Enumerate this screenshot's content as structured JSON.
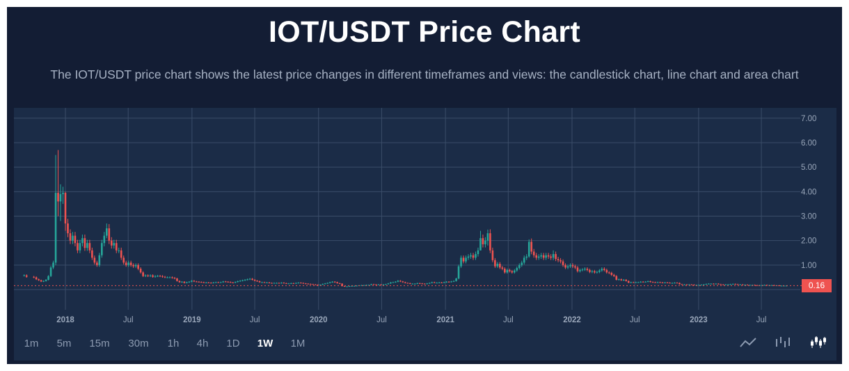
{
  "header": {
    "title": "IOT/USDT Price Chart",
    "subtitle": "The IOT/USDT price chart shows the latest price changes in different timeframes and views: the candlestick chart, line chart and area chart"
  },
  "timeframes": [
    {
      "label": "1m",
      "active": false
    },
    {
      "label": "5m",
      "active": false
    },
    {
      "label": "15m",
      "active": false
    },
    {
      "label": "30m",
      "active": false
    },
    {
      "label": "1h",
      "active": false
    },
    {
      "label": "4h",
      "active": false
    },
    {
      "label": "1D",
      "active": false
    },
    {
      "label": "1W",
      "active": true
    },
    {
      "label": "1M",
      "active": false
    }
  ],
  "views": [
    {
      "icon": "line-chart-icon",
      "active": false
    },
    {
      "icon": "bar-chart-icon",
      "active": false
    },
    {
      "icon": "candlestick-chart-icon",
      "active": true
    }
  ],
  "colors": {
    "up": "#26a69a",
    "down": "#ef5350",
    "grid": "#3b4d68",
    "axis_text": "#9aa7ba",
    "background": "#1b2c47"
  },
  "chart_data": {
    "type": "candlestick",
    "interval": "1W",
    "title": "",
    "xlabel": "",
    "ylabel": "",
    "ylim": [
      0,
      7
    ],
    "grid": true,
    "y_ticks": [
      "1.00",
      "2.00",
      "3.00",
      "4.00",
      "5.00",
      "6.00",
      "7.00"
    ],
    "x_ticks": [
      {
        "label": "2018",
        "date": "2018-01-01"
      },
      {
        "label": "Jul",
        "date": "2018-07-01"
      },
      {
        "label": "2019",
        "date": "2019-01-01"
      },
      {
        "label": "Jul",
        "date": "2019-07-01"
      },
      {
        "label": "2020",
        "date": "2020-01-01"
      },
      {
        "label": "Jul",
        "date": "2020-07-01"
      },
      {
        "label": "2021",
        "date": "2021-01-01"
      },
      {
        "label": "Jul",
        "date": "2021-07-01"
      },
      {
        "label": "2022",
        "date": "2022-01-01"
      },
      {
        "label": "Jul",
        "date": "2022-07-01"
      },
      {
        "label": "2023",
        "date": "2023-01-01"
      },
      {
        "label": "Jul",
        "date": "2023-07-01"
      }
    ],
    "last_price": "0.16",
    "last_price_value": 0.16,
    "weekly_closes_by_month": {
      "2017-09": [
        0.58,
        0.52
      ],
      "2017-10": [
        0.5,
        0.42,
        0.38,
        0.33,
        0.35
      ],
      "2017-11": [
        0.4,
        0.55,
        0.9,
        1.1
      ],
      "2017-12": [
        [
          3.95,
          5.5,
          1.0
        ],
        [
          3.6,
          5.7,
          3.0
        ],
        [
          3.9,
          4.3,
          2.8
        ],
        [
          3.95,
          4.2,
          3.5
        ]
      ],
      "2018-01": [
        [
          2.7,
          4.0,
          2.4
        ],
        2.3,
        2.0,
        2.2,
        1.9
      ],
      "2018-02": [
        1.6,
        1.9,
        2.1,
        1.7
      ],
      "2018-03": [
        1.9,
        1.6,
        1.3,
        1.1
      ],
      "2018-04": [
        1.0,
        1.4,
        1.9,
        2.2,
        [
          2.5,
          2.7,
          2.1
        ]
      ],
      "2018-05": [
        2.0,
        1.8,
        1.9,
        1.6
      ],
      "2018-06": [
        1.6,
        1.3,
        1.1,
        1.0
      ],
      "2018-07": [
        1.1,
        1.0,
        0.95,
        1.0,
        0.85
      ],
      "2018-08": [
        0.7,
        0.55,
        0.58,
        0.55
      ],
      "2018-09": [
        0.58,
        0.52,
        0.55,
        0.56
      ],
      "2018-10": [
        0.55,
        0.52,
        0.5,
        0.5,
        0.5
      ],
      "2018-11": [
        0.48,
        0.45,
        0.35,
        0.3
      ],
      "2018-12": [
        0.32,
        0.27,
        0.3,
        0.32,
        0.36
      ],
      "2019-01": [
        0.33,
        0.32,
        0.31,
        0.3
      ],
      "2019-02": [
        0.28,
        0.29,
        0.28,
        0.27
      ],
      "2019-03": [
        0.29,
        0.3,
        0.29,
        0.3
      ],
      "2019-04": [
        0.33,
        0.32,
        0.31,
        0.29,
        0.28
      ],
      "2019-05": [
        0.31,
        0.34,
        0.36,
        0.38
      ],
      "2019-06": [
        0.4,
        0.42,
        0.44,
        0.4
      ],
      "2019-07": [
        0.36,
        0.34,
        0.3,
        0.3,
        0.29
      ],
      "2019-08": [
        0.29,
        0.27,
        0.26,
        0.27
      ],
      "2019-09": [
        0.27,
        0.26,
        0.28,
        0.26,
        0.25
      ],
      "2019-10": [
        0.25,
        0.26,
        0.25,
        0.27
      ],
      "2019-11": [
        0.28,
        0.27,
        0.25,
        0.24
      ],
      "2019-12": [
        0.23,
        0.22,
        0.21,
        0.2,
        0.19
      ],
      "2020-01": [
        0.2,
        0.23,
        0.25,
        0.27
      ],
      "2020-02": [
        0.3,
        0.32,
        0.3,
        0.26
      ],
      "2020-03": [
        0.24,
        0.14,
        0.12,
        0.13,
        0.14
      ],
      "2020-04": [
        0.15,
        0.15,
        0.16,
        0.17
      ],
      "2020-05": [
        0.18,
        0.18,
        0.19,
        0.19
      ],
      "2020-06": [
        0.22,
        0.21,
        0.2,
        0.21,
        0.2
      ],
      "2020-07": [
        0.21,
        0.22,
        0.25,
        0.29
      ],
      "2020-08": [
        0.3,
        0.32,
        0.36,
        0.33,
        0.3
      ],
      "2020-09": [
        0.27,
        0.26,
        0.24,
        0.24
      ],
      "2020-10": [
        0.24,
        0.26,
        0.25,
        0.24
      ],
      "2020-11": [
        0.23,
        0.25,
        0.27,
        0.3,
        0.28
      ],
      "2020-12": [
        0.28,
        0.29,
        0.28,
        0.3
      ],
      "2021-01": [
        0.32,
        0.31,
        0.33,
        0.35
      ],
      "2021-02": [
        0.45,
        0.95,
        1.3,
        1.15
      ],
      "2021-03": [
        1.3,
        1.35,
        1.4,
        1.3,
        1.45
      ],
      "2021-04": [
        1.6,
        [
          2.1,
          2.4,
          1.6
        ],
        1.85,
        2.0
      ],
      "2021-05": [
        [
          2.3,
          2.45,
          1.8
        ],
        1.6,
        1.2,
        0.95,
        1.05
      ],
      "2021-06": [
        0.9,
        0.85,
        0.7,
        0.8
      ],
      "2021-07": [
        0.75,
        0.7,
        0.78,
        0.88
      ],
      "2021-08": [
        1.0,
        1.1,
        1.3,
        1.35,
        [
          1.95,
          2.05,
          1.3
        ]
      ],
      "2021-09": [
        1.55,
        1.4,
        1.3,
        1.35
      ],
      "2021-10": [
        1.4,
        1.3,
        1.4,
        1.35
      ],
      "2021-11": [
        1.3,
        [
          1.45,
          1.6,
          1.2
        ],
        1.25,
        1.2,
        1.15
      ],
      "2021-12": [
        1.0,
        0.9,
        0.95,
        1.0
      ],
      "2022-01": [
        0.95,
        0.9,
        0.75,
        0.8,
        0.82
      ],
      "2022-02": [
        0.85,
        0.8,
        0.72,
        0.75
      ],
      "2022-03": [
        0.7,
        0.72,
        0.78,
        0.85
      ],
      "2022-04": [
        0.8,
        0.7,
        0.68,
        0.6
      ],
      "2022-05": [
        0.55,
        0.4,
        0.42,
        0.38,
        0.4
      ],
      "2022-06": [
        0.35,
        0.28,
        0.3,
        0.29
      ],
      "2022-07": [
        0.3,
        0.3,
        0.32,
        0.31
      ],
      "2022-08": [
        0.32,
        0.34,
        0.31,
        0.3,
        0.29
      ],
      "2022-09": [
        0.3,
        0.29,
        0.28,
        0.29
      ],
      "2022-10": [
        0.28,
        0.27,
        0.27,
        0.28,
        0.27
      ],
      "2022-11": [
        0.22,
        0.21,
        0.21,
        0.2
      ],
      "2022-12": [
        0.21,
        0.2,
        0.19,
        0.19
      ],
      "2023-01": [
        0.19,
        0.2,
        0.21,
        0.23,
        0.24
      ],
      "2023-02": [
        0.24,
        0.23,
        0.24,
        0.22
      ],
      "2023-03": [
        0.21,
        0.2,
        0.21,
        0.21
      ],
      "2023-04": [
        0.22,
        0.23,
        0.22,
        0.21
      ],
      "2023-05": [
        0.21,
        0.2,
        0.2,
        0.19,
        0.19
      ],
      "2023-06": [
        0.19,
        0.18,
        0.17,
        0.18
      ],
      "2023-07": [
        0.18,
        0.19,
        0.18,
        0.18,
        0.18
      ],
      "2023-08": [
        0.17,
        0.17,
        0.16,
        0.16
      ],
      "2023-09": [
        0.16,
        0.16
      ]
    }
  }
}
